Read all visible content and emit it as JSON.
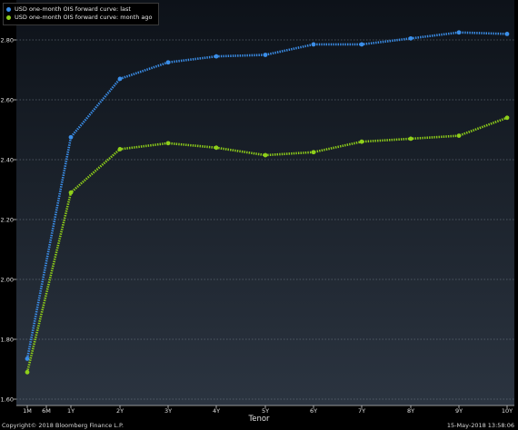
{
  "chart_data": {
    "type": "line",
    "title": "",
    "xlabel": "Tenor",
    "ylabel": "",
    "categories": [
      "1M",
      "6M",
      "1Y",
      "2Y",
      "3Y",
      "4Y",
      "5Y",
      "6Y",
      "7Y",
      "8Y",
      "9Y",
      "10Y"
    ],
    "x": [
      "1M",
      "1Y",
      "2Y",
      "3Y",
      "4Y",
      "5Y",
      "6Y",
      "7Y",
      "8Y",
      "9Y",
      "10Y"
    ],
    "ylim": [
      1.6,
      2.85
    ],
    "yticks": [
      "1.60",
      "1.80",
      "2.00",
      "2.20",
      "2.40",
      "2.60",
      "2.80"
    ],
    "grid": true,
    "legend_position": "top-left",
    "series": [
      {
        "name": "USD one-month OIS forward curve: last",
        "color": "#3b8ee8",
        "values": [
          1.735,
          2.475,
          2.67,
          2.725,
          2.745,
          2.75,
          2.785,
          2.785,
          2.805,
          2.825,
          2.82
        ]
      },
      {
        "name": "USD one-month OIS forward curve: month ago",
        "color": "#8fcf1a",
        "values": [
          1.69,
          2.29,
          2.435,
          2.455,
          2.44,
          2.415,
          2.425,
          2.46,
          2.47,
          2.48,
          2.54
        ]
      }
    ]
  },
  "footer": {
    "copyright": "Copyright© 2018 Bloomberg Finance L.P.",
    "timestamp": "15-May-2018 13:58:06"
  }
}
